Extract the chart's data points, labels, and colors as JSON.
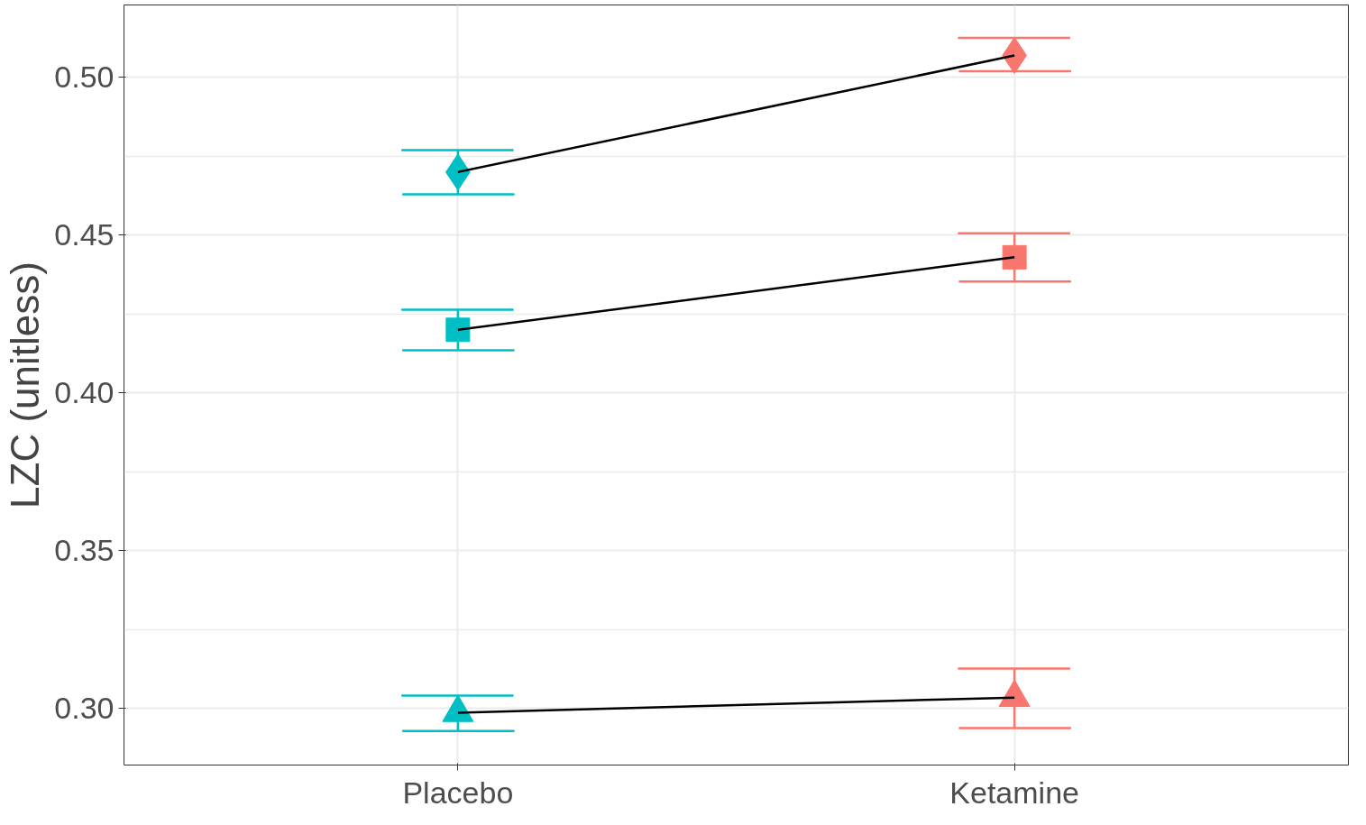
{
  "chart_data": {
    "type": "line",
    "ylabel": "LZC (unitless)",
    "categories": [
      "Placebo",
      "Ketamine"
    ],
    "ylim": [
      0.282,
      0.523
    ],
    "yticks": [
      {
        "value": 0.3,
        "label": "0.30"
      },
      {
        "value": 0.35,
        "label": "0.35"
      },
      {
        "value": 0.4,
        "label": "0.40"
      },
      {
        "value": 0.45,
        "label": "0.45"
      },
      {
        "value": 0.5,
        "label": "0.50"
      }
    ],
    "grid": true,
    "series": [
      {
        "color": "#000000",
        "colors": [
          "#00bfc4",
          "#f8766d"
        ],
        "marker": "diamond",
        "values": [
          0.47,
          0.507
        ],
        "errors": [
          [
            0.463,
            0.477
          ],
          [
            0.502,
            0.5126
          ]
        ]
      },
      {
        "color": "#000000",
        "colors": [
          "#00bfc4",
          "#f8766d"
        ],
        "marker": "square",
        "values": [
          0.42,
          0.443
        ],
        "errors": [
          [
            0.4135,
            0.4264
          ],
          [
            0.4353,
            0.4506
          ]
        ]
      },
      {
        "color": "#000000",
        "colors": [
          "#00bfc4",
          "#f8766d"
        ],
        "marker": "triangle",
        "values": [
          0.2986,
          0.3034
        ],
        "errors": [
          [
            0.2928,
            0.304
          ],
          [
            0.2937,
            0.3126
          ]
        ]
      }
    ]
  }
}
